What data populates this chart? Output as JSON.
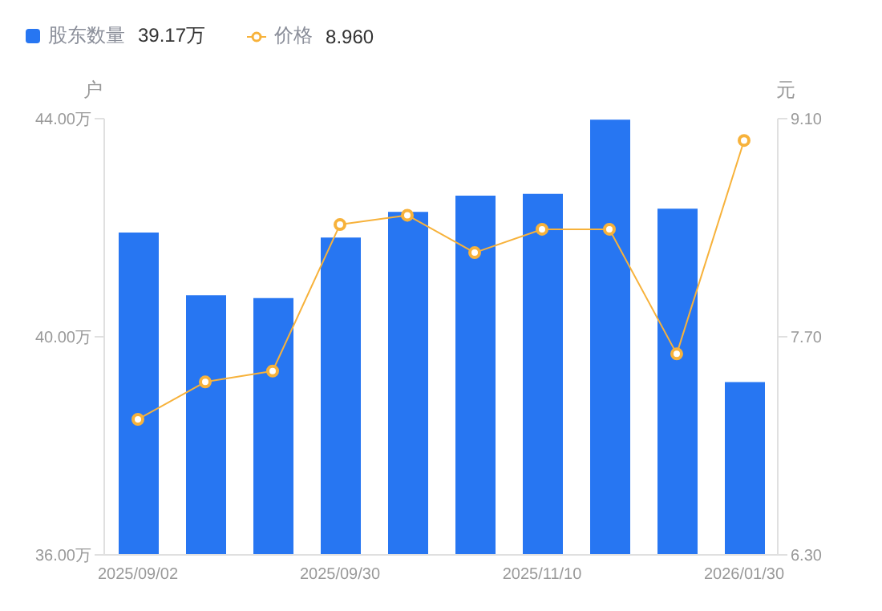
{
  "chart_data": {
    "type": "bar",
    "categories": [
      "2025/09/02",
      null,
      null,
      "2025/09/30",
      null,
      null,
      "2025/11/10",
      null,
      null,
      "2026/01/30"
    ],
    "series": [
      {
        "name": "股东数量",
        "color": "#2776f2",
        "values": [
          41.91,
          40.76,
          40.71,
          41.82,
          42.29,
          42.59,
          42.62,
          43.98,
          42.35,
          39.17
        ]
      },
      {
        "name": "价格",
        "type": "line",
        "axis": "y2",
        "color": "#f7b23b",
        "marker": "circle",
        "values": [
          7.17,
          7.41,
          7.48,
          8.42,
          8.48,
          8.24,
          8.39,
          8.39,
          7.59,
          8.96
        ]
      }
    ],
    "annotations": [
      "39.17万",
      "8.960"
    ],
    "ylabel": "户",
    "y2label": "元",
    "ylim": [
      36,
      44
    ],
    "yticks": [
      {
        "value": 36,
        "label": "36.00万"
      },
      {
        "value": 40,
        "label": "40.00万"
      },
      {
        "value": 44,
        "label": "44.00万"
      }
    ],
    "y2lim": [
      6.3,
      9.1
    ],
    "y2ticks": [
      {
        "value": 6.3,
        "label": "6.30"
      },
      {
        "value": 7.7,
        "label": "7.70"
      },
      {
        "value": 9.1,
        "label": "9.10"
      }
    ],
    "grid": false,
    "legend": "top left"
  }
}
